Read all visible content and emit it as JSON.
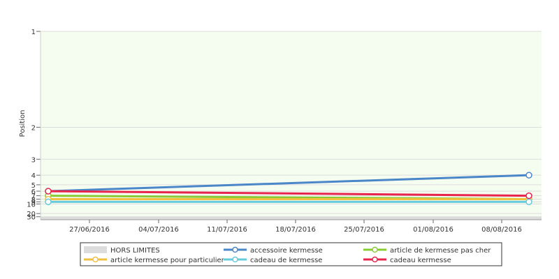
{
  "chart_data": {
    "type": "line",
    "ylabel": "Position",
    "y_scale": "reciprocal",
    "y_inverted": true,
    "y_ticks": [
      1,
      2,
      3,
      4,
      5,
      6,
      7,
      8,
      9,
      10,
      20,
      30
    ],
    "x_tick_labels": [
      "27/06/2016",
      "04/07/2016",
      "11/07/2016",
      "18/07/2016",
      "25/07/2016",
      "01/08/2016",
      "08/08/2016"
    ],
    "x": [
      "21/06/2016",
      "11/08/2016"
    ],
    "out_of_range": {
      "label": "HORS LIMITES",
      "from": 30,
      "color": "#dcdcdc"
    },
    "grid": true,
    "plot_background": "#f5fcf0",
    "legend_position": "bottom",
    "series": [
      {
        "name": "accessoire kermesse",
        "color": "#4a86c8",
        "values": [
          6,
          4
        ]
      },
      {
        "name": "article de kermesse pas cher",
        "color": "#88cc33",
        "values": [
          7,
          8
        ]
      },
      {
        "name": "article kermesse pour particulier",
        "color": "#f0c040",
        "values": [
          8,
          8
        ]
      },
      {
        "name": "cadeau de kermesse",
        "color": "#66ccdd",
        "values": [
          9,
          9
        ]
      },
      {
        "name": "cadeau kermesse",
        "color": "#e8244c",
        "values": [
          6,
          7
        ]
      }
    ]
  }
}
